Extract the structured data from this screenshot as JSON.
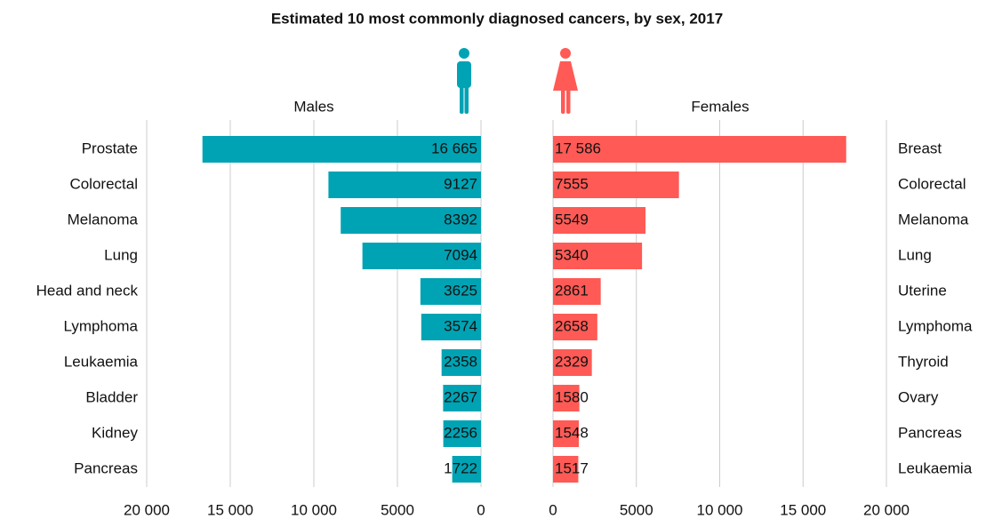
{
  "title": "Estimated 10 most commonly diagnosed cancers, by sex, 2017",
  "chart_data": [
    {
      "type": "bar",
      "orientation": "horizontal",
      "reversed": true,
      "title": "Males",
      "color": "#00a3b4",
      "grid": true,
      "categories": [
        "Prostate",
        "Colorectal",
        "Melanoma",
        "Lung",
        "Head and neck",
        "Lymphoma",
        "Leukaemia",
        "Bladder",
        "Kidney",
        "Pancreas"
      ],
      "values": [
        16665,
        9127,
        8392,
        7094,
        3625,
        3574,
        2358,
        2267,
        2256,
        1722
      ],
      "value_labels": [
        "16 665",
        "9127",
        "8392",
        "7094",
        "3625",
        "3574",
        "2358",
        "2267",
        "2256",
        "1722"
      ],
      "xlim": [
        0,
        20000
      ],
      "xticks": [
        0,
        5000,
        {
          "value": 10000,
          "label": "10 000"
        },
        {
          "value": 15000,
          "label": "15 000"
        },
        {
          "value": 20000,
          "label": "20 000"
        }
      ]
    },
    {
      "type": "bar",
      "orientation": "horizontal",
      "reversed": false,
      "title": "Females",
      "color": "#ff5a55",
      "grid": true,
      "categories": [
        "Breast",
        "Colorectal",
        "Melanoma",
        "Lung",
        "Uterine",
        "Lymphoma",
        "Thyroid",
        "Ovary",
        "Pancreas",
        "Leukaemia"
      ],
      "values": [
        17586,
        7555,
        5549,
        5340,
        2861,
        2658,
        2329,
        1580,
        1548,
        1517
      ],
      "value_labels": [
        "17 586",
        "7555",
        "5549",
        "5340",
        "2861",
        "2658",
        "2329",
        "1580",
        "1548",
        "1517"
      ],
      "xlim": [
        0,
        20000
      ],
      "xticks": [
        0,
        5000,
        {
          "value": 10000,
          "label": "10 000"
        },
        {
          "value": 15000,
          "label": "15 000"
        },
        {
          "value": 20000,
          "label": "20 000"
        }
      ]
    }
  ]
}
